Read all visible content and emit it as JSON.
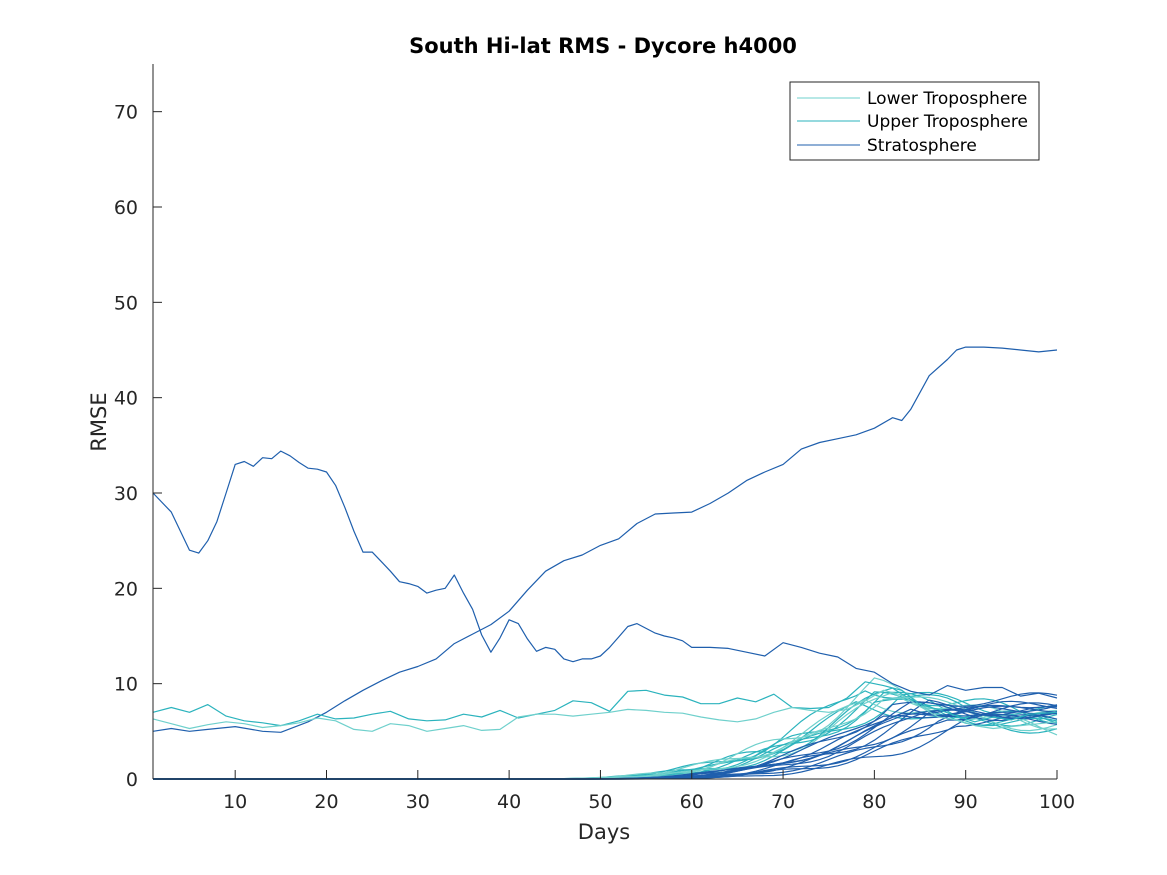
{
  "chart_data": {
    "type": "line",
    "title": "South Hi-lat RMS - Dycore h4000",
    "xlabel": "Days",
    "ylabel": "RMSE",
    "xlim": [
      1,
      100
    ],
    "ylim": [
      0,
      75
    ],
    "xticks": [
      10,
      20,
      30,
      40,
      50,
      60,
      70,
      80,
      90,
      100
    ],
    "yticks": [
      0,
      10,
      20,
      30,
      40,
      50,
      60,
      70
    ],
    "grid": false,
    "legend_position": "top-right",
    "colors": {
      "lower_troposphere": "#6FD0CC",
      "upper_troposphere": "#2BB3BD",
      "stratosphere": "#1F5FAD"
    },
    "legend": [
      {
        "label": "Lower Troposphere",
        "color": "#6FD0CC"
      },
      {
        "label": "Upper Troposphere",
        "color": "#2BB3BD"
      },
      {
        "label": "Stratosphere",
        "color": "#1F5FAD"
      }
    ],
    "series": [
      {
        "group": "stratosphere",
        "x": [
          1,
          3,
          5,
          6,
          7,
          8,
          9,
          10,
          11,
          12,
          13,
          14,
          15,
          16,
          17,
          18,
          19,
          20,
          21,
          22,
          23,
          24,
          25,
          26,
          27,
          28,
          29,
          30,
          31,
          32,
          33,
          34,
          35,
          36,
          37,
          38,
          39,
          40,
          41,
          42,
          43,
          44,
          45,
          46,
          47,
          48,
          49,
          50,
          51,
          52,
          53,
          54,
          55,
          56,
          57,
          58,
          59,
          60,
          62,
          64,
          66,
          68,
          70,
          72,
          74,
          76,
          78,
          80,
          82,
          84,
          86,
          88,
          90,
          92,
          94,
          96,
          98,
          100
        ],
        "y": [
          30,
          28,
          24,
          23.7,
          25,
          27,
          30,
          33,
          33.3,
          32.8,
          33.7,
          33.6,
          34.4,
          33.9,
          33.2,
          32.6,
          32.5,
          32.2,
          30.8,
          28.5,
          26,
          23.8,
          23.8,
          22.8,
          21.8,
          20.7,
          20.5,
          20.2,
          19.5,
          19.8,
          20,
          21.4,
          19.5,
          17.8,
          15.1,
          13.3,
          14.8,
          16.7,
          16.3,
          14.7,
          13.4,
          13.8,
          13.6,
          12.6,
          12.3,
          12.6,
          12.6,
          12.9,
          13.8,
          14.9,
          16,
          16.3,
          15.8,
          15.3,
          15,
          14.8,
          14.5,
          13.8,
          13.8,
          13.7,
          13.3,
          12.9,
          14.3,
          13.8,
          13.2,
          12.8,
          11.6,
          11.2,
          10,
          9.2,
          8.8,
          9.8,
          9.3,
          9.6,
          9.6,
          8.7,
          9,
          8.5
        ]
      },
      {
        "group": "stratosphere",
        "x": [
          1,
          3,
          5,
          7,
          10,
          13,
          15,
          18,
          20,
          22,
          24,
          26,
          28,
          30,
          32,
          34,
          36,
          38,
          40,
          42,
          44,
          46,
          48,
          50,
          52,
          54,
          56,
          58,
          60,
          62,
          64,
          66,
          68,
          70,
          72,
          74,
          76,
          78,
          80,
          82,
          83,
          84,
          86,
          88,
          89,
          90,
          92,
          94,
          96,
          98,
          100
        ],
        "y": [
          5,
          5.3,
          5,
          5.2,
          5.5,
          5,
          4.9,
          6,
          7,
          8.2,
          9.3,
          10.3,
          11.2,
          11.8,
          12.6,
          14.2,
          15.2,
          16.2,
          17.6,
          19.8,
          21.8,
          22.9,
          23.5,
          24.5,
          25.2,
          26.8,
          27.8,
          27.9,
          28,
          28.9,
          30,
          31.3,
          32.2,
          33,
          34.6,
          35.3,
          35.7,
          36.1,
          36.8,
          37.9,
          37.6,
          38.8,
          42.3,
          44,
          45,
          45.3,
          45.3,
          45.2,
          45,
          44.8,
          45
        ]
      },
      {
        "group": "upper_troposphere",
        "x": [
          1,
          3,
          5,
          7,
          9,
          11,
          13,
          15,
          17,
          19,
          21,
          23,
          25,
          27,
          29,
          31,
          33,
          35,
          37,
          39,
          41,
          43,
          45,
          47,
          49,
          51,
          53,
          55,
          57,
          59,
          61,
          63,
          65,
          67,
          69,
          71,
          73,
          75,
          77,
          79,
          81,
          83,
          85,
          87,
          89,
          91,
          93,
          95,
          97,
          100
        ],
        "y": [
          7,
          7.5,
          7,
          7.8,
          6.6,
          6.1,
          5.9,
          5.6,
          6.1,
          6.8,
          6.3,
          6.4,
          6.8,
          7.1,
          6.3,
          6.1,
          6.2,
          6.8,
          6.5,
          7.2,
          6.4,
          6.8,
          7.2,
          8.2,
          8,
          7.1,
          9.2,
          9.3,
          8.8,
          8.6,
          7.9,
          7.9,
          8.5,
          8.1,
          8.9,
          7.5,
          7.4,
          7.5,
          8.5,
          10.2,
          9.8,
          9.3,
          7.8,
          7.3,
          6.6,
          6,
          6.5,
          6.2,
          6.8,
          7
        ]
      },
      {
        "group": "lower_troposphere",
        "x": [
          1,
          3,
          5,
          7,
          9,
          11,
          13,
          15,
          17,
          19,
          21,
          23,
          25,
          27,
          29,
          31,
          33,
          35,
          37,
          39,
          41,
          43,
          45,
          47,
          49,
          51,
          53,
          55,
          57,
          59,
          61,
          63,
          65,
          67,
          69,
          71,
          73,
          75,
          77,
          79,
          81,
          83,
          85,
          87,
          89,
          91,
          93,
          95,
          97,
          100
        ],
        "y": [
          6.3,
          5.8,
          5.3,
          5.7,
          6,
          5.8,
          5.4,
          5.6,
          5.9,
          6.4,
          6.1,
          5.2,
          5,
          5.8,
          5.6,
          5,
          5.3,
          5.6,
          5.1,
          5.2,
          6.5,
          6.8,
          6.8,
          6.6,
          6.8,
          7,
          7.3,
          7.2,
          7,
          6.9,
          6.5,
          6.2,
          6,
          6.3,
          7,
          7.5,
          7.2,
          7,
          7.3,
          8.2,
          9.3,
          8.8,
          7.6,
          6.5,
          6.2,
          5.6,
          5.3,
          5.5,
          5.7,
          6
        ]
      }
    ],
    "ensemble": [
      {
        "group": "upper_troposphere",
        "onset": 52,
        "peak_day": 79,
        "peak": 10.0,
        "end": 6.0,
        "spread": 0.9
      },
      {
        "group": "upper_troposphere",
        "onset": 51,
        "peak_day": 81,
        "peak": 9.0,
        "end": 5.5,
        "spread": 0.8
      },
      {
        "group": "upper_troposphere",
        "onset": 53,
        "peak_day": 80,
        "peak": 8.6,
        "end": 6.2,
        "spread": 0.7
      },
      {
        "group": "upper_troposphere",
        "onset": 50,
        "peak_day": 82,
        "peak": 9.5,
        "end": 6.8,
        "spread": 0.9
      },
      {
        "group": "upper_troposphere",
        "onset": 54,
        "peak_day": 78,
        "peak": 7.8,
        "end": 5.3,
        "spread": 0.6
      },
      {
        "group": "upper_troposphere",
        "onset": 52,
        "peak_day": 83,
        "peak": 8.9,
        "end": 7.1,
        "spread": 0.7
      },
      {
        "group": "upper_troposphere",
        "onset": 55,
        "peak_day": 80,
        "peak": 8.2,
        "end": 5.8,
        "spread": 0.8
      },
      {
        "group": "lower_troposphere",
        "onset": 51,
        "peak_day": 80,
        "peak": 9.8,
        "end": 5.2,
        "spread": 0.9
      },
      {
        "group": "lower_troposphere",
        "onset": 53,
        "peak_day": 82,
        "peak": 9.2,
        "end": 6.0,
        "spread": 0.8
      },
      {
        "group": "lower_troposphere",
        "onset": 50,
        "peak_day": 79,
        "peak": 8.4,
        "end": 5.6,
        "spread": 0.7
      },
      {
        "group": "lower_troposphere",
        "onset": 54,
        "peak_day": 81,
        "peak": 8.8,
        "end": 6.6,
        "spread": 0.6
      },
      {
        "group": "stratosphere",
        "onset": 57,
        "peak_day": 84,
        "peak": 7.6,
        "end": 8.6,
        "spread": 0.5
      },
      {
        "group": "stratosphere",
        "onset": 58,
        "peak_day": 85,
        "peak": 7.0,
        "end": 7.8,
        "spread": 0.5
      },
      {
        "group": "stratosphere",
        "onset": 56,
        "peak_day": 83,
        "peak": 7.2,
        "end": 7.2,
        "spread": 0.4
      },
      {
        "group": "stratosphere",
        "onset": 59,
        "peak_day": 86,
        "peak": 6.8,
        "end": 6.9,
        "spread": 0.5
      },
      {
        "group": "stratosphere",
        "onset": 57,
        "peak_day": 82,
        "peak": 7.9,
        "end": 6.4,
        "spread": 0.6
      },
      {
        "group": "stratosphere",
        "onset": 60,
        "peak_day": 88,
        "peak": 6.5,
        "end": 7.6,
        "spread": 0.5
      },
      {
        "group": "stratosphere",
        "onset": 58,
        "peak_day": 84,
        "peak": 7.4,
        "end": 6.1,
        "spread": 0.4
      },
      {
        "group": "stratosphere",
        "onset": 61,
        "peak_day": 87,
        "peak": 6.2,
        "end": 8.1,
        "spread": 0.5
      },
      {
        "group": "stratosphere",
        "onset": 56,
        "peak_day": 81,
        "peak": 7.0,
        "end": 6.7,
        "spread": 0.4
      },
      {
        "group": "stratosphere",
        "onset": 59,
        "peak_day": 86,
        "peak": 7.7,
        "end": 7.0,
        "spread": 0.6
      },
      {
        "group": "stratosphere",
        "onset": 60,
        "peak_day": 89,
        "peak": 6.0,
        "end": 6.3,
        "spread": 0.5
      },
      {
        "group": "stratosphere",
        "onset": 57,
        "peak_day": 83,
        "peak": 6.6,
        "end": 7.4,
        "spread": 0.4
      },
      {
        "group": "stratosphere",
        "onset": 62,
        "peak_day": 90,
        "peak": 5.8,
        "end": 7.9,
        "spread": 0.5
      }
    ]
  }
}
